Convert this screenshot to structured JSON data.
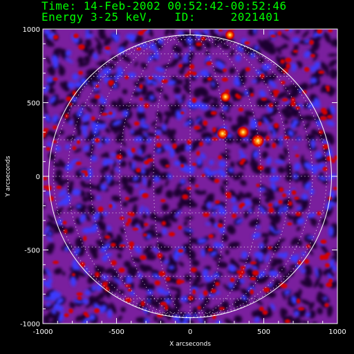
{
  "header": {
    "time_label": "Time:",
    "time_value": "14-Feb-2002 00:52:42-00:52:46",
    "energy_label": "Energy",
    "energy_value": "3-25 keV,",
    "id_label": "ID:",
    "id_value": "2021401"
  },
  "chart_data": {
    "type": "heatmap",
    "title": "",
    "xlabel": "X arcseconds",
    "ylabel": "Y arcseconds",
    "xlim": [
      -1000,
      1000
    ],
    "ylim": [
      -1000,
      1000
    ],
    "x_ticks": [
      -1000,
      -500,
      0,
      500,
      1000
    ],
    "y_ticks": [
      -1000,
      -500,
      0,
      500,
      1000
    ],
    "solar_radius_arcsec": 960,
    "grid": "heliographic-dotted",
    "bright_sources": [
      {
        "x": 460,
        "y": 240,
        "intensity": 1.0
      },
      {
        "x": 360,
        "y": 300,
        "intensity": 0.85
      },
      {
        "x": 220,
        "y": 290,
        "intensity": 0.8
      },
      {
        "x": 240,
        "y": 540,
        "intensity": 0.7
      },
      {
        "x": 270,
        "y": 960,
        "intensity": 0.6
      }
    ],
    "colors": {
      "background": "#7a1f9e",
      "low": "#1c0030",
      "mid": "#3a3aff",
      "high": "#d40000",
      "peak": "#ffff66",
      "grid": "#ffffff",
      "limb": "#ffffff"
    }
  }
}
